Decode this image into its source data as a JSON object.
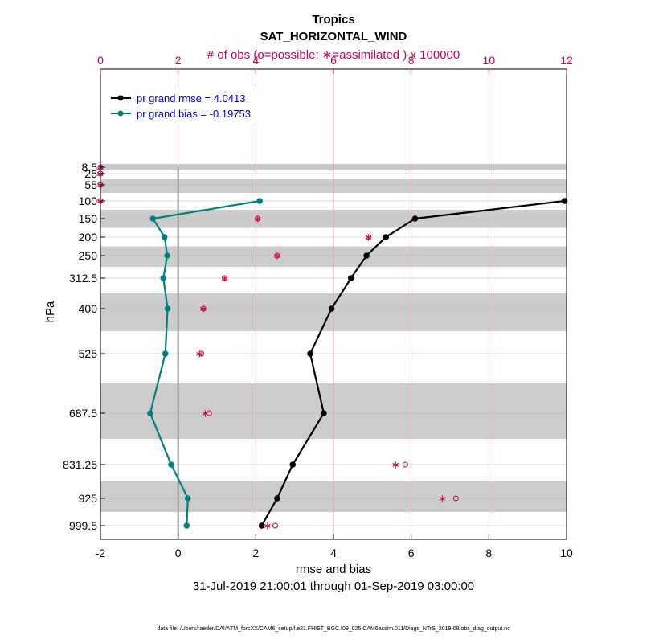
{
  "chart_data": {
    "type": "line",
    "title": "Tropics",
    "subtitle": "SAT_HORIZONTAL_WIND",
    "top_axis_label": "# of obs (o=possible; ∗=assimilated ) x 100000",
    "xlabel": "rmse and bias",
    "ylabel": "hPa",
    "date_range": "31-Jul-2019 21:00:01 through 01-Sep-2019 03:00:00",
    "footer": "data file: /Users/raeder/DAI/ATM_forcXX/CAM6_setup/f.e21.FHIST_BGC.f09_025.CAM6assim.011/Diags_NTrS_2019-08/obs_diag_output.nc",
    "xlim": [
      -2,
      10
    ],
    "xticks": [
      "-2",
      "0",
      "2",
      "4",
      "6",
      "8",
      "10"
    ],
    "top_xlim": [
      0,
      12
    ],
    "top_xticks": [
      "0",
      "2",
      "4",
      "6",
      "8",
      "10",
      "12"
    ],
    "levels": [
      8.5,
      25,
      55,
      100,
      150,
      200,
      250,
      312.5,
      400,
      525,
      687.5,
      831.25,
      925,
      999.5
    ],
    "level_labels": [
      "8.5",
      "25",
      "55",
      "100",
      "150",
      "200",
      "250",
      "312.5",
      "400",
      "525",
      "687.5",
      "831.25",
      "925",
      "999.5"
    ],
    "shaded_levels": [
      8.5,
      55,
      150,
      250,
      400,
      687.5,
      925
    ],
    "series": [
      {
        "name": "pr grand rmse = 4.0413",
        "color": "#000000",
        "levels": [
          100,
          150,
          200,
          250,
          312.5,
          400,
          525,
          687.5,
          831.25,
          925,
          999.5
        ],
        "values": [
          9.95,
          6.1,
          5.35,
          4.85,
          4.45,
          3.95,
          3.4,
          3.75,
          2.95,
          2.55,
          2.15
        ]
      },
      {
        "name": "pr grand bias = -0.19753",
        "color": "#008080",
        "levels": [
          100,
          150,
          200,
          250,
          312.5,
          400,
          525,
          687.5,
          831.25,
          925,
          999.5
        ],
        "values": [
          2.1,
          -0.65,
          -0.35,
          -0.28,
          -0.38,
          -0.27,
          -0.33,
          -0.72,
          -0.18,
          0.25,
          0.22
        ]
      }
    ],
    "obs_counts": {
      "levels": [
        8.5,
        25,
        55,
        100,
        150,
        200,
        250,
        312.5,
        400,
        525,
        687.5,
        831.25,
        925,
        999.5
      ],
      "possible": [
        0,
        0,
        0,
        0,
        4.05,
        6.9,
        4.55,
        3.2,
        2.65,
        2.6,
        2.8,
        7.85,
        9.15,
        4.5
      ],
      "assimilated": [
        0,
        0,
        0,
        0,
        4.05,
        6.9,
        4.55,
        3.2,
        2.65,
        2.55,
        2.7,
        7.6,
        8.8,
        4.3
      ]
    },
    "obs_color": "#cc0055"
  }
}
